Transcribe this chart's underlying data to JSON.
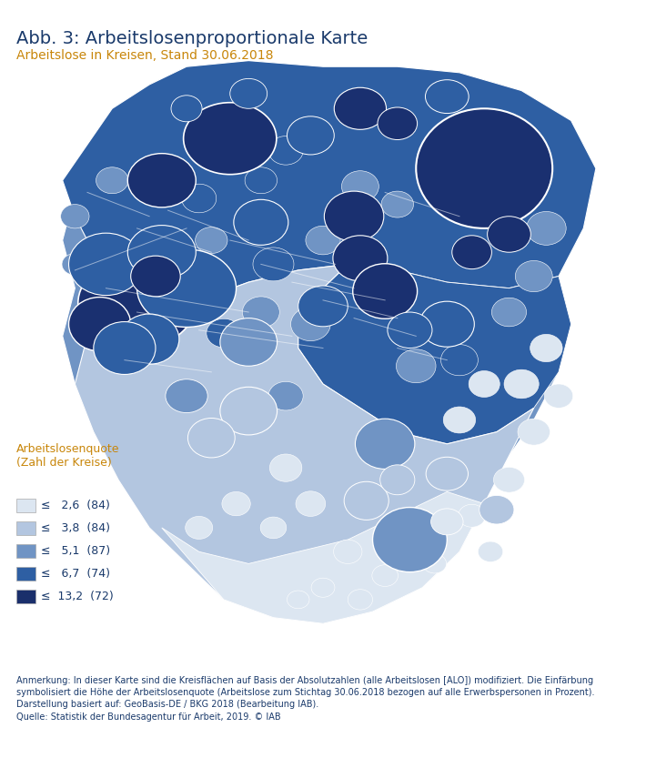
{
  "title": "Abb. 3: Arbeitslosenproportionale Karte",
  "subtitle": "Arbeitslose in Kreisen, Stand 30.06.2018",
  "title_color": "#1a3a6b",
  "subtitle_color": "#c8860a",
  "legend_title": "Arbeitslosenquote\n(Zahl der Kreise)",
  "legend_title_color": "#c8860a",
  "legend_entries": [
    {
      "label": "≤   2,6  (84)",
      "color": "#dce6f1"
    },
    {
      "label": "≤   3,8  (84)",
      "color": "#b3c6e0"
    },
    {
      "label": "≤   5,1  (87)",
      "color": "#7094c4"
    },
    {
      "label": "≤   6,7  (74)",
      "color": "#2e5fa3"
    },
    {
      "label": "≤  13,2  (72)",
      "color": "#1a2f6b"
    }
  ],
  "legend_text_color": "#1a3a6b",
  "note_text": "Anmerkung: In dieser Karte sind die Kreisflächen auf Basis der Absolutzahlen (alle Arbeitslosen [ALO]) modifiziert. Die Einfärbung\nsymbolisiert die Höhe der Arbeitslosenquote (Arbeitslose zum Stichtag 30.06.2018 bezogen auf alle Erwerbspersonen in Prozent).\nDarstellung basiert auf: GeoBasis-DE / BKG 2018 (Bearbeitung IAB).\nQuelle: Statistik der Bundesagentur für Arbeit, 2019. © IAB",
  "note_color": "#1a3a6b",
  "bg_color": "#ffffff",
  "map_colors": {
    "light1": "#dce6f1",
    "light2": "#b3c6e0",
    "medium": "#7094c4",
    "dark1": "#2e5fa3",
    "dark2": "#1a3070",
    "border": "#ffffff"
  },
  "figsize": [
    7.1,
    8.33
  ],
  "dpi": 100
}
